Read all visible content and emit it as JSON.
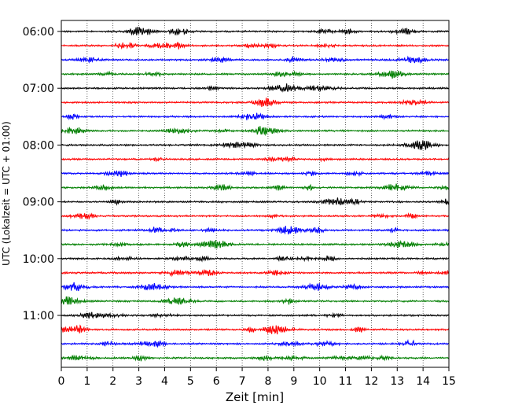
{
  "chart_data": {
    "type": "line",
    "title": "",
    "xlabel": "Zeit  [min]",
    "ylabel": "UTC (Lokalzeit = UTC + 01:00)",
    "xlim": [
      0,
      15
    ],
    "x_ticks": [
      0,
      1,
      2,
      3,
      4,
      5,
      6,
      7,
      8,
      9,
      10,
      11,
      12,
      13,
      14,
      15
    ],
    "y_tick_labels": [
      "06:00",
      "07:00",
      "08:00",
      "09:00",
      "10:00",
      "11:00"
    ],
    "grid": "vertical dotted lines at each minute",
    "legend": "none",
    "trace_interval_minutes": 15,
    "trace_start": "06:00",
    "trace_count": 24,
    "color_cycle": [
      "#000000",
      "#ff0000",
      "#0000ff",
      "#007f00"
    ]
  }
}
